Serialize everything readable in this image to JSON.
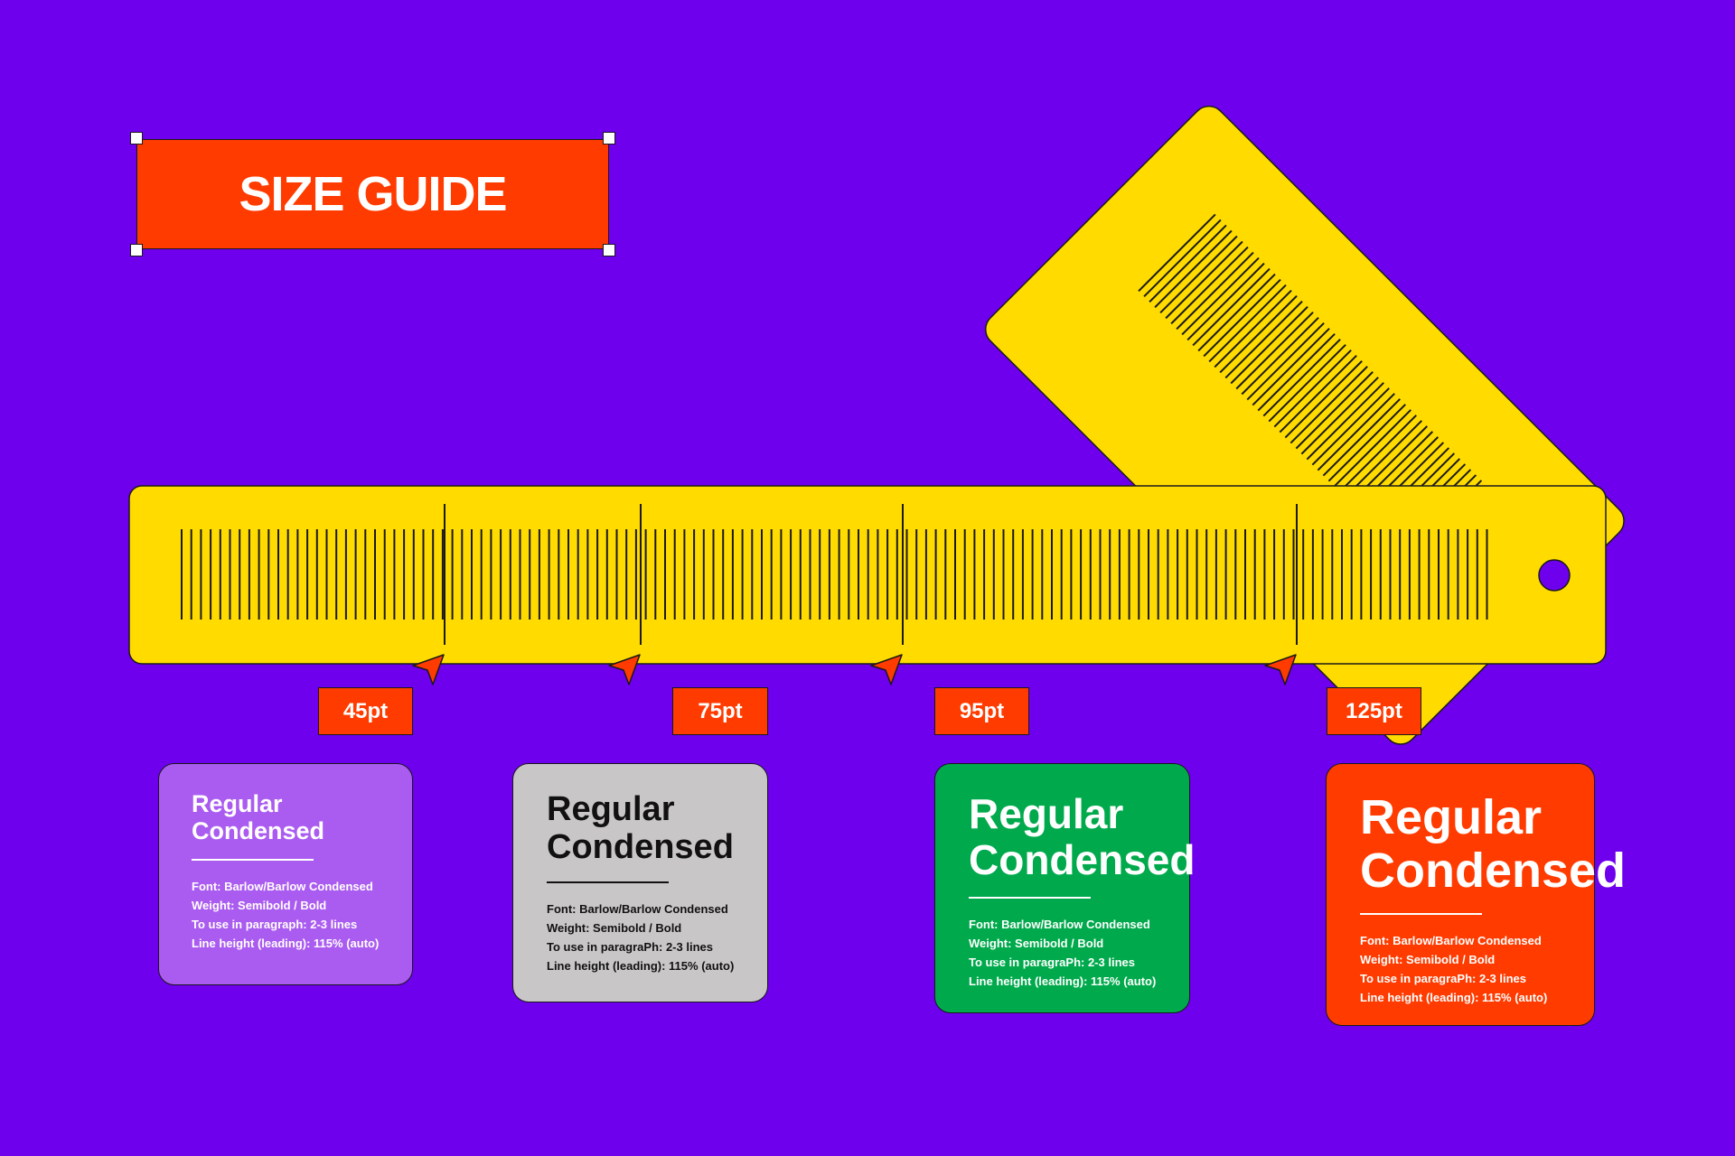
{
  "title": "SIZE GUIDE",
  "colors": {
    "background": "#6E00EE",
    "ruler": "#FFDB00",
    "accent": "#FF3B00",
    "card_purple": "#AB5CF0",
    "card_gray": "#C9C6C8",
    "card_green": "#00AA4C",
    "card_red": "#FF3B00"
  },
  "markers": [
    {
      "label": "45pt"
    },
    {
      "label": "75pt"
    },
    {
      "label": "95pt"
    },
    {
      "label": "125pt"
    }
  ],
  "cards": [
    {
      "line1": "Regular",
      "line2": "Condensed",
      "specs": [
        "Font: Barlow/Barlow Condensed",
        "Weight: Semibold / Bold",
        "To use in paragraph: 2-3 lines",
        "Line height (leading): 115% (auto)"
      ]
    },
    {
      "line1": "Regular",
      "line2": "Condensed",
      "specs": [
        "Font: Barlow/Barlow Condensed",
        "Weight: Semibold / Bold",
        "To use in paragraPh: 2-3 lines",
        "Line height (leading): 115% (auto)"
      ]
    },
    {
      "line1": "Regular",
      "line2": "Condensed",
      "specs": [
        "Font: Barlow/Barlow Condensed",
        "Weight: Semibold / Bold",
        "To use in paragraPh: 2-3 lines",
        "Line height (leading): 115% (auto)"
      ]
    },
    {
      "line1": "Regular",
      "line2": "Condensed",
      "specs": [
        "Font: Barlow/Barlow Condensed",
        "Weight: Semibold / Bold",
        "To use in paragraPh: 2-3 lines",
        "Line height (leading): 115% (auto)"
      ]
    }
  ]
}
